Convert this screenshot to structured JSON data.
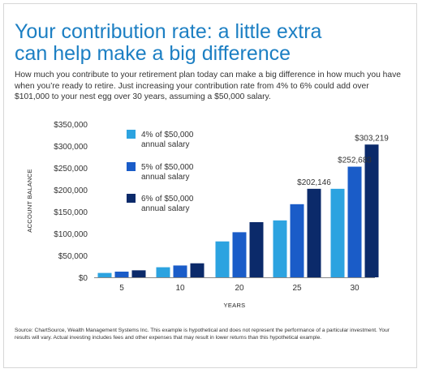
{
  "title_line1": "Your contribution rate: a little extra",
  "title_line2": "can help make a big difference",
  "intro": "How much you contribute to your retirement plan today can make a big difference in how much you have when you’re ready to retire. Just increasing your contribution rate from 4% to 6% could add over $101,000 to your nest egg over 30 years, assuming a $50,000 salary.",
  "source": "Source: ChartSource, Wealth Management Systems Inc. This example is hypothetical and does not represent the performance of a particular investment. Your results will vary. Actual investing includes fees and other expenses that may result in lower returns than this hypothetical example.",
  "chart_data": {
    "type": "bar",
    "xlabel": "YEARS",
    "ylabel": "ACCOUNT BALANCE",
    "ylim": [
      0,
      350000
    ],
    "yticks": [
      0,
      50000,
      100000,
      150000,
      200000,
      250000,
      300000,
      350000
    ],
    "ytick_labels": [
      "$0",
      "$50,000",
      "$100,000",
      "$150,000",
      "$200,000",
      "$250,000",
      "$300,000",
      "$350,000"
    ],
    "categories": [
      "5",
      "10",
      "20",
      "25",
      "30"
    ],
    "series": [
      {
        "name": "4% of $50,000 annual salary",
        "legend_lines": [
          "4% of $50,000",
          "annual salary"
        ],
        "color": "#2ca3e0",
        "values": [
          10000,
          23000,
          82000,
          130000,
          202146
        ]
      },
      {
        "name": "5% of $50,000 annual salary",
        "legend_lines": [
          "5% of $50,000",
          "annual salary"
        ],
        "color": "#1a5cc8",
        "values": [
          13000,
          27000,
          103000,
          167000,
          252683
        ]
      },
      {
        "name": "6% of $50,000 annual salary",
        "legend_lines": [
          "6% of $50,000",
          "annual salary"
        ],
        "color": "#0b2a6a",
        "values": [
          16000,
          32000,
          126000,
          202146,
          303219
        ]
      }
    ],
    "data_labels": [
      {
        "category": "25",
        "series": 2,
        "text": "$202,146"
      },
      {
        "category": "30",
        "series": 1,
        "text": "$252,683"
      },
      {
        "category": "30",
        "series": 2,
        "text": "$303,219"
      }
    ],
    "legend_position": "top-left",
    "grid": false
  }
}
